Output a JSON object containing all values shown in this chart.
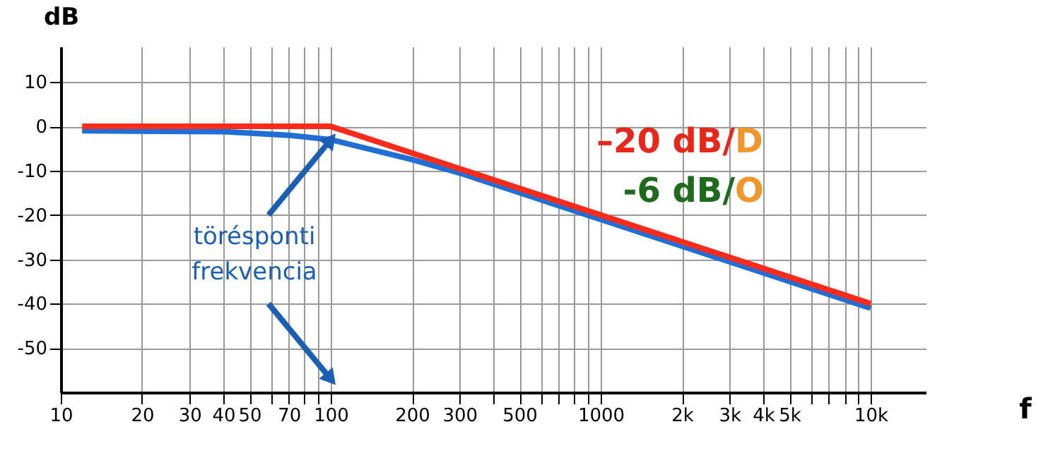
{
  "chart_data": {
    "type": "line",
    "xlabel": "f",
    "ylabel": "dB",
    "log": "x",
    "xlim": [
      10,
      16000
    ],
    "ylim": [
      -60,
      18
    ],
    "xticks": [
      10,
      20,
      30,
      40,
      50,
      {
        "value": 60,
        "label": null
      },
      70,
      {
        "value": 80,
        "label": null
      },
      {
        "value": 90,
        "label": null
      },
      100,
      200,
      300,
      {
        "value": 400,
        "label": null
      },
      500,
      {
        "value": 600,
        "label": null
      },
      {
        "value": 700,
        "label": null
      },
      {
        "value": 800,
        "label": null
      },
      {
        "value": 900,
        "label": null
      },
      1000,
      {
        "value": 2000,
        "label": "2k"
      },
      {
        "value": 3000,
        "label": "3k"
      },
      {
        "value": 4000,
        "label": "4k"
      },
      {
        "value": 5000,
        "label": "5k"
      },
      {
        "value": 6000,
        "label": null
      },
      {
        "value": 7000,
        "label": null
      },
      {
        "value": 8000,
        "label": null
      },
      {
        "value": 9000,
        "label": null
      },
      {
        "value": 10000,
        "label": "10k"
      }
    ],
    "yticks": [
      -50,
      -40,
      -30,
      -20,
      -10,
      0,
      10
    ],
    "grid": true,
    "marker": "none",
    "line_style": "solid",
    "series": [
      {
        "color": "#1f6fd6",
        "x": [
          12,
          40,
          70,
          100,
          200,
          300,
          1000,
          10000
        ],
        "values": [
          -1,
          -1.2,
          -2,
          -3,
          -7.5,
          -10.5,
          -21,
          -41
        ]
      },
      {
        "color": "#ff2a1a",
        "x": [
          12,
          100,
          10000
        ],
        "values": [
          0,
          0,
          -40
        ]
      }
    ],
    "annotations": [
      {
        "text": "törésponti frekvencia",
        "x": 100,
        "y": -3
      },
      "–20 dB/D",
      "-6 dB/O"
    ]
  }
}
